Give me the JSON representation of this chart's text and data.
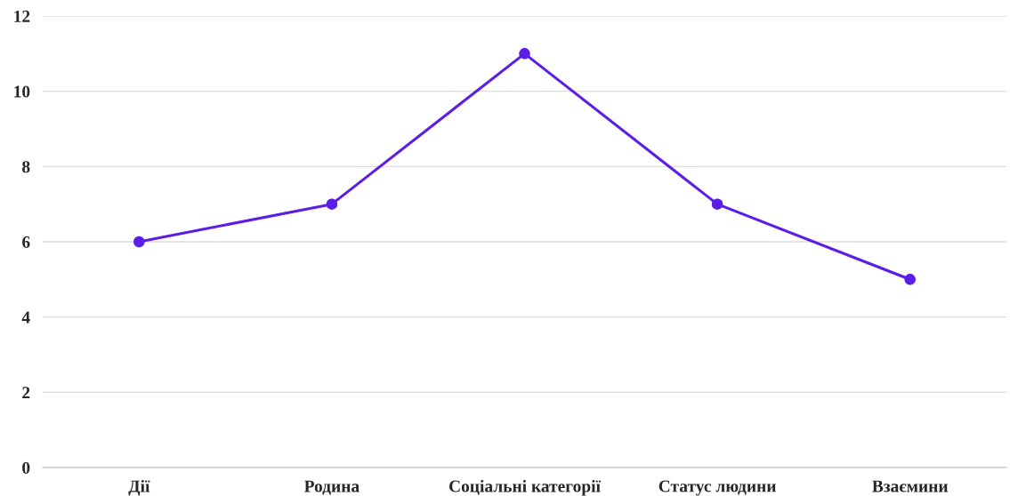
{
  "chart_data": {
    "type": "line",
    "categories": [
      "Дії",
      "Родина",
      "Соціальні категорії",
      "Статус людини",
      "Взаємини"
    ],
    "series": [
      {
        "color": "#5b1ee6",
        "values": [
          6,
          7,
          11,
          7,
          5
        ]
      }
    ],
    "ylim": [
      0,
      12
    ],
    "yticks": [
      0,
      2,
      4,
      6,
      8,
      10,
      12
    ],
    "grid": "y",
    "marker": "circle",
    "line_style": "solid"
  }
}
